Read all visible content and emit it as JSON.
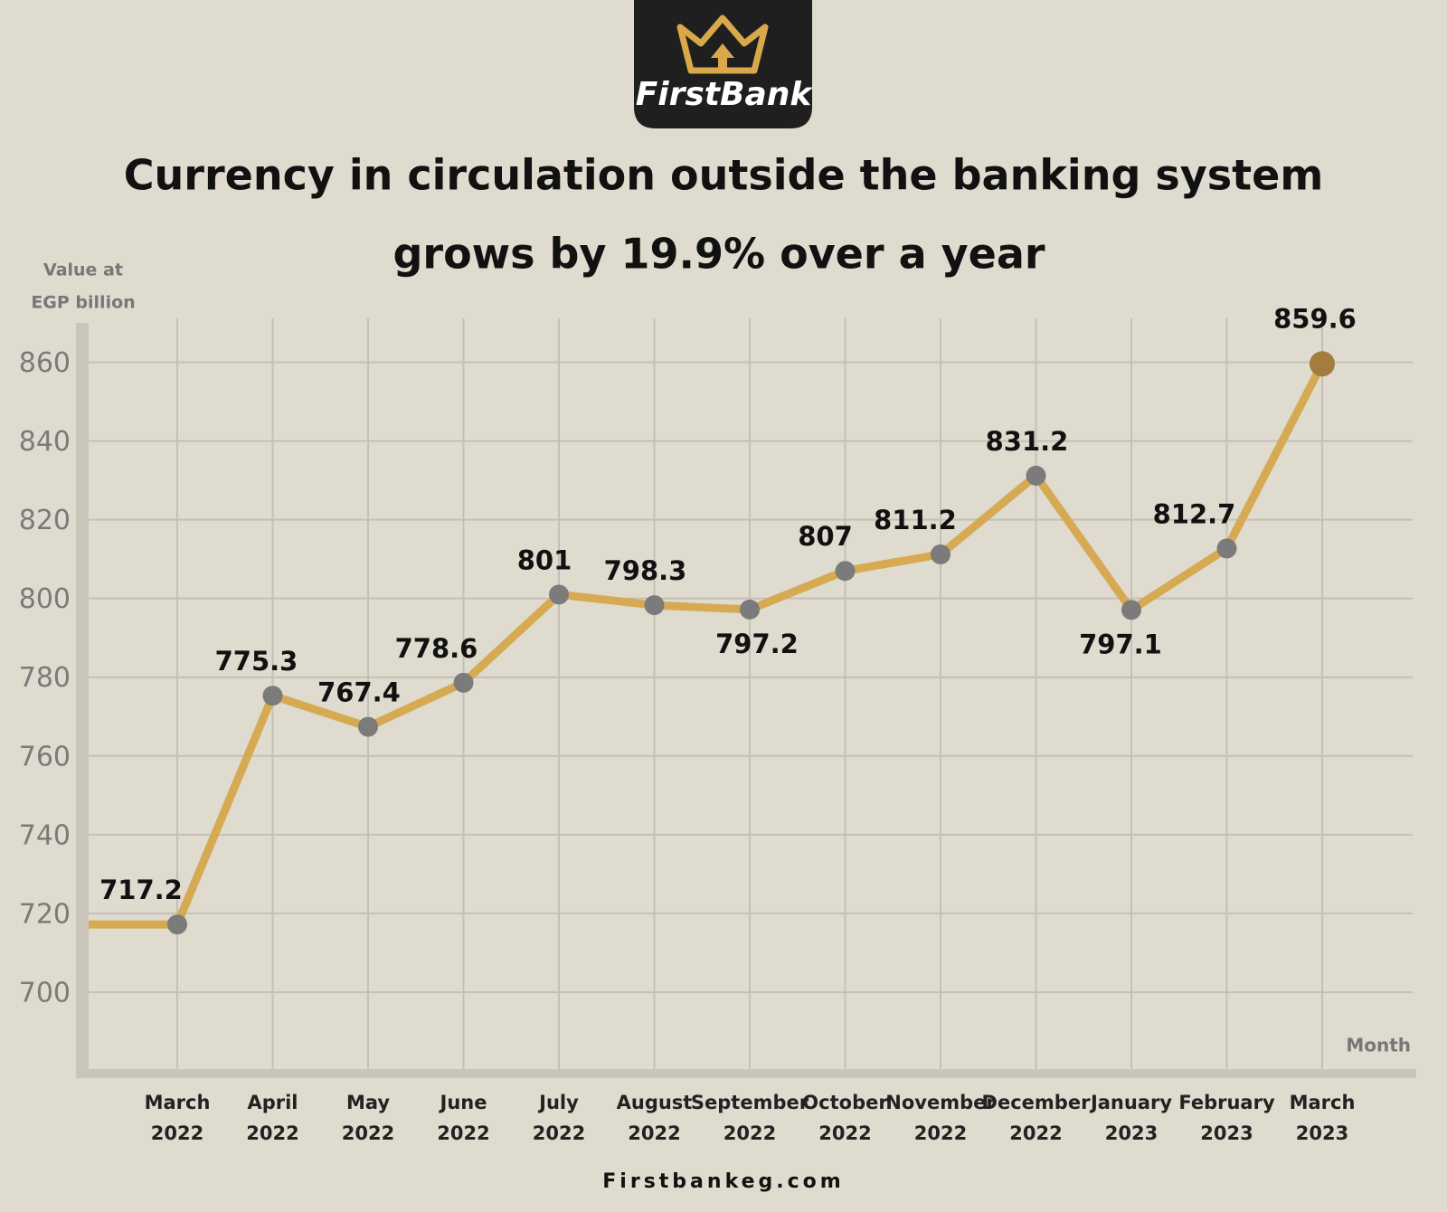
{
  "brand": "FirstBank",
  "footer": "Firstbankeg.com",
  "chart_data": {
    "type": "line",
    "title": [
      "Currency in circulation outside the banking system",
      "grows by 19.9% over a year"
    ],
    "y_label": [
      "Value at",
      "EGP billion"
    ],
    "x_label": "Month",
    "categories": [
      "March 2022",
      "April 2022",
      "May 2022",
      "June 2022",
      "July 2022",
      "August 2022",
      "September 2022",
      "October 2022",
      "November 2022",
      "December 2022",
      "January 2023",
      "February 2023",
      "March 2023"
    ],
    "series": [
      {
        "name": "Currency in circulation",
        "color": "#d6aa52",
        "values": [
          717.2,
          775.3,
          767.4,
          778.6,
          801,
          798.3,
          797.2,
          807,
          811.2,
          831.2,
          797.1,
          812.7,
          859.6
        ]
      }
    ],
    "marker_color": "#7b7b7b",
    "highlight_color": "#a37c3e",
    "ylim": [
      680,
      870
    ],
    "yticks": [
      700,
      720,
      740,
      760,
      780,
      800,
      820,
      840,
      860
    ],
    "grid": true
  }
}
